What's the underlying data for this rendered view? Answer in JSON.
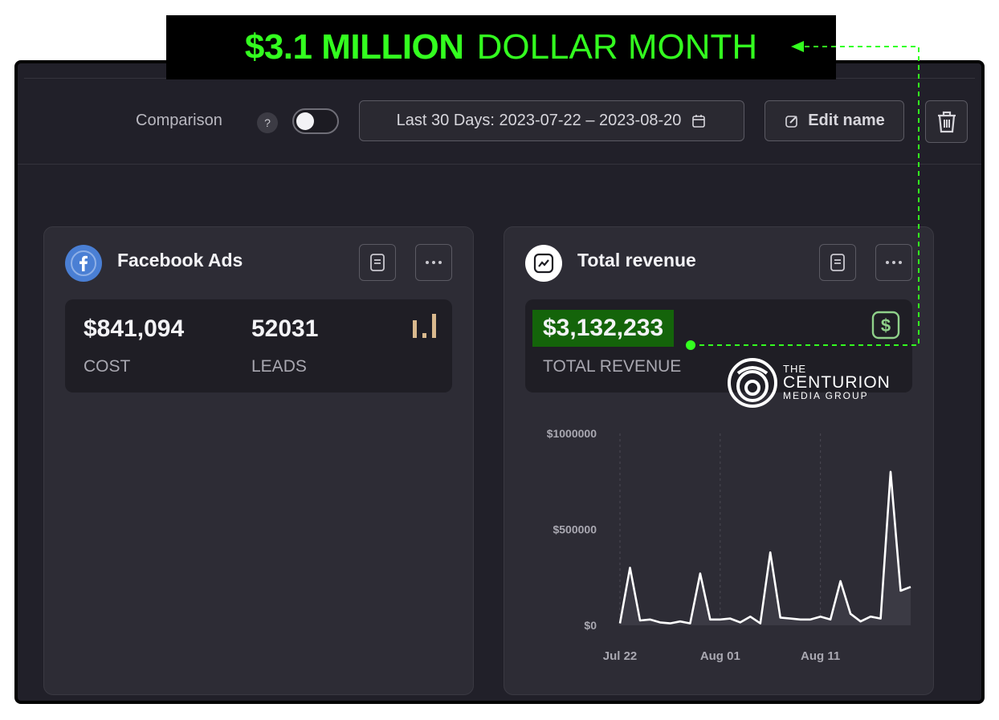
{
  "banner": {
    "highlight": "$3.1 MILLION",
    "text": "DOLLAR MONTH"
  },
  "toolbar": {
    "comparison_label": "Comparison",
    "help_label": "?",
    "date_range_label": "Last 30 Days: 2023-07-22 – 2023-08-20",
    "edit_name_label": "Edit name"
  },
  "facebook_card": {
    "title": "Facebook Ads",
    "metrics": [
      {
        "value": "$841,094",
        "label": "COST"
      },
      {
        "value": "52031",
        "label": "LEADS"
      }
    ]
  },
  "revenue_card": {
    "title": "Total revenue",
    "value": "$3,132,233",
    "label": "TOTAL REVENUE"
  },
  "logo": {
    "line1": "THE",
    "line2": "CENTURION",
    "line3": "MEDIA GROUP"
  },
  "colors": {
    "accent_green": "#33ff1f",
    "highlight_bg": "#14640a",
    "facebook_blue": "#4a7fd4"
  },
  "chart_data": {
    "type": "area",
    "x": [
      "2023-07-22",
      "2023-07-23",
      "2023-07-24",
      "2023-07-25",
      "2023-07-26",
      "2023-07-27",
      "2023-07-28",
      "2023-07-29",
      "2023-07-30",
      "2023-07-31",
      "2023-08-01",
      "2023-08-02",
      "2023-08-03",
      "2023-08-04",
      "2023-08-05",
      "2023-08-06",
      "2023-08-07",
      "2023-08-08",
      "2023-08-09",
      "2023-08-10",
      "2023-08-11",
      "2023-08-12",
      "2023-08-13",
      "2023-08-14",
      "2023-08-15",
      "2023-08-16",
      "2023-08-17",
      "2023-08-18",
      "2023-08-19",
      "2023-08-20"
    ],
    "values": [
      10000,
      300000,
      25000,
      30000,
      15000,
      10000,
      20000,
      10000,
      270000,
      30000,
      30000,
      35000,
      15000,
      45000,
      10000,
      380000,
      40000,
      35000,
      30000,
      30000,
      45000,
      30000,
      230000,
      60000,
      20000,
      45000,
      35000,
      800000,
      180000,
      200000
    ],
    "yticks": [
      0,
      500000,
      1000000
    ],
    "ytick_labels": [
      "$0",
      "$500000",
      "$1000000"
    ],
    "xticks": [
      "2023-07-22",
      "2023-08-01",
      "2023-08-11"
    ],
    "xtick_labels": [
      "Jul 22",
      "Aug 01",
      "Aug 11"
    ],
    "ylim": [
      0,
      1000000
    ],
    "grid": "vertical dashed at x ticks"
  }
}
